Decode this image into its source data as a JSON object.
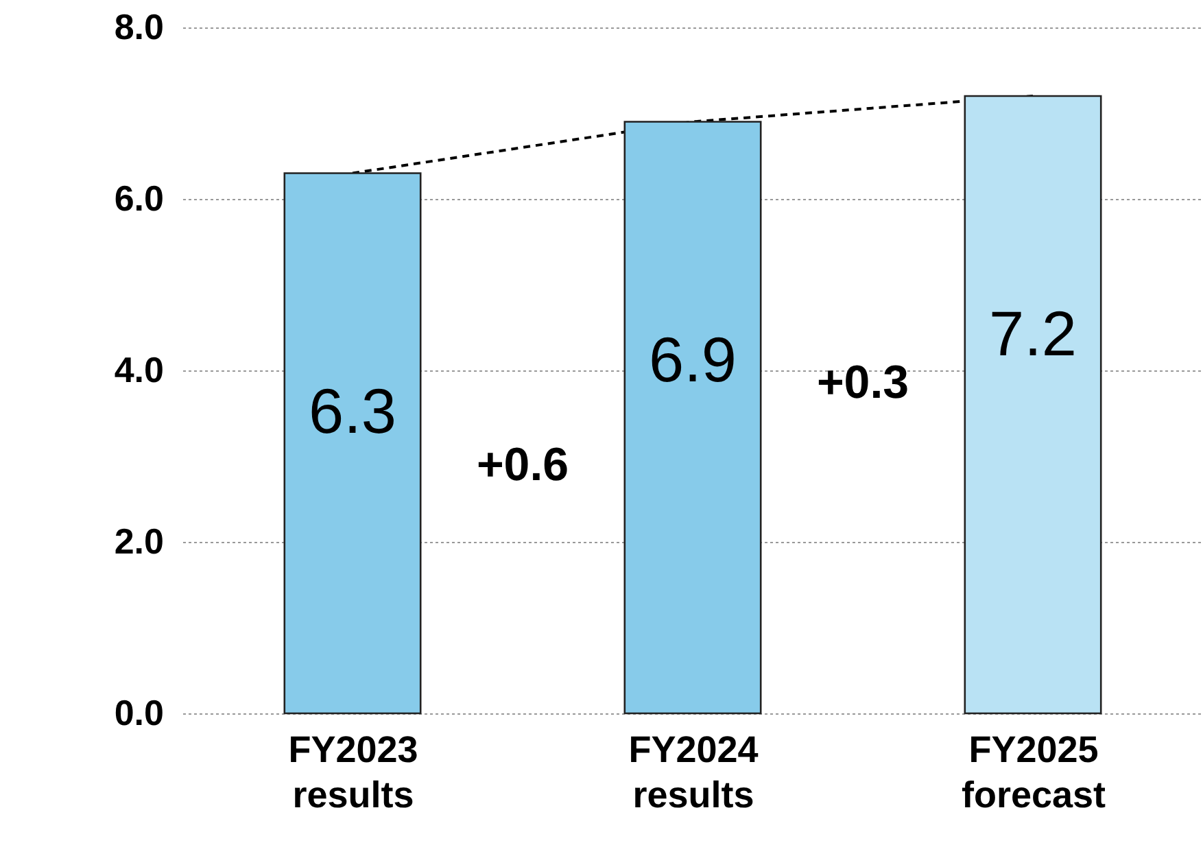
{
  "chart_data": {
    "type": "bar",
    "categories": [
      "FY2023\nresults",
      "FY2024\nresults",
      "FY2025\nforecast"
    ],
    "series": [
      {
        "values": [
          6.3,
          6.9,
          7.2
        ],
        "colors": [
          "#87cbea",
          "#87cbea",
          "#b9e2f4"
        ],
        "value_labels": [
          "6.3",
          "6.9",
          "7.2"
        ]
      },
      {
        "type": "line",
        "color": "#000000",
        "values": [
          6.3,
          6.9,
          7.2
        ],
        "line_style": "dashed",
        "marker": "none"
      }
    ],
    "annotations": [
      "+0.6",
      "+0.3"
    ],
    "ylim": [
      0,
      8
    ],
    "yticks": [
      {
        "value": 0,
        "label": "0.0"
      },
      {
        "value": 2,
        "label": "2.0"
      },
      {
        "value": 4,
        "label": "4.0"
      },
      {
        "value": 6,
        "label": "6.0"
      },
      {
        "value": 8,
        "label": "8.0"
      }
    ],
    "grid": "y"
  }
}
